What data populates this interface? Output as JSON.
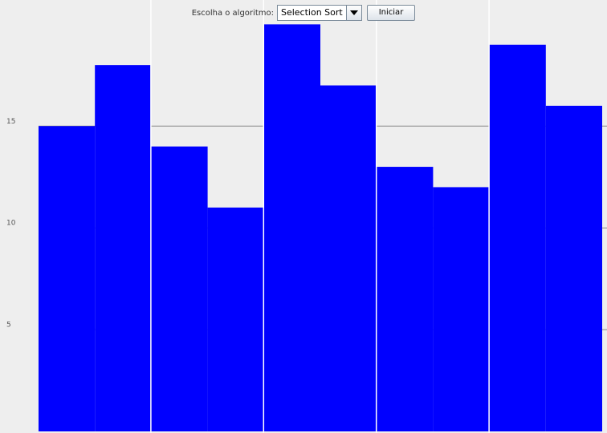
{
  "controls": {
    "algorithm_label": "Escolha o algoritmo:",
    "algorithm_selected": "Selection Sort",
    "start_button": "Iniciar"
  },
  "chart_data": {
    "type": "bar",
    "values": [
      15,
      18,
      14,
      11,
      20,
      17,
      13,
      12,
      19,
      16
    ],
    "color": "#0000ff",
    "ylim": [
      0,
      21
    ],
    "yticks": [
      5,
      10,
      15
    ],
    "grid": true
  }
}
